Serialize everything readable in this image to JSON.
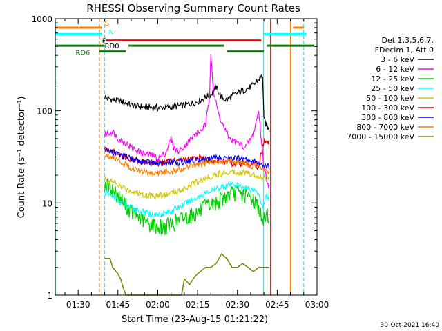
{
  "chart_data": {
    "type": "line",
    "title": "RHESSI Observing Summary Count Rates",
    "xlabel": "Start Time (23-Aug-15 01:21:22)",
    "ylabel": "Count Rate (s⁻¹ detector⁻¹)",
    "y_scale": "log",
    "ylim": [
      1,
      1000
    ],
    "xlim": [
      "01:21:22",
      "03:00:00"
    ],
    "x_tick_labels": [
      "01:30",
      "01:45",
      "02:00",
      "02:15",
      "02:30",
      "02:45",
      "03:00"
    ],
    "y_tick_labels": [
      "1",
      "10",
      "100",
      "1000"
    ],
    "timestamp": "30-Oct-2021 16:40",
    "legend": {
      "position": "right",
      "header": [
        "Det 1,3,5,6,7,",
        "FDecim 1, Att 0"
      ]
    },
    "flag_labels": [
      "S",
      "N",
      "F",
      "RD0",
      "RD6"
    ],
    "flags": [
      {
        "label": "S",
        "color": "#ff7f00",
        "y": 800,
        "segments": [
          [
            "01:21:22",
            "01:39:00"
          ],
          [
            "02:51:00",
            "02:55:00"
          ]
        ]
      },
      {
        "label": "N",
        "color": "#00ffff",
        "y": 680,
        "segments": [
          [
            "01:21:22",
            "01:39:00"
          ],
          [
            "02:40:00",
            "02:56:00"
          ]
        ]
      },
      {
        "label": "F",
        "color": "#ff0000",
        "y": 580,
        "segments": [
          [
            "01:40:30",
            "02:39:00"
          ]
        ]
      },
      {
        "label": "RD0",
        "color": "#008000",
        "y": 510,
        "segments": [
          [
            "01:21:22",
            "01:40:00"
          ],
          [
            "01:49:00",
            "02:25:00"
          ],
          [
            "02:41:00",
            "02:59:00"
          ]
        ]
      },
      {
        "label": "RD6",
        "color": "#008000",
        "y": 440,
        "segments": [
          [
            "01:38:00",
            "01:48:00"
          ],
          [
            "02:26:00",
            "02:40:00"
          ]
        ]
      }
    ],
    "vlines": [
      {
        "t": "01:21:22",
        "color": "#00ffff",
        "style": "solid"
      },
      {
        "t": "01:38:00",
        "color": "#ff7f00",
        "style": "dashed"
      },
      {
        "t": "01:40:00",
        "color": "#00ffff",
        "style": "dashed"
      },
      {
        "t": "02:39:50",
        "color": "#00ffff",
        "style": "solid"
      },
      {
        "t": "02:42:30",
        "color": "#ff0000",
        "style": "solid"
      },
      {
        "t": "02:50:00",
        "color": "#ff7f00",
        "style": "solid"
      },
      {
        "t": "02:55:00",
        "color": "#00ffff",
        "style": "dashed"
      }
    ],
    "series": [
      {
        "name": "3 - 6 keV",
        "color": "#000000",
        "points": [
          [
            "01:40:00",
            140
          ],
          [
            "01:43:00",
            132
          ],
          [
            "01:46:00",
            127
          ],
          [
            "01:50:00",
            115
          ],
          [
            "01:55:00",
            110
          ],
          [
            "02:00:00",
            108
          ],
          [
            "02:05:00",
            110
          ],
          [
            "02:10:00",
            115
          ],
          [
            "02:15:00",
            125
          ],
          [
            "02:18:00",
            140
          ],
          [
            "02:20:00",
            150
          ],
          [
            "02:22:00",
            180
          ],
          [
            "02:24:00",
            140
          ],
          [
            "02:26:00",
            130
          ],
          [
            "02:28:00",
            145
          ],
          [
            "02:30:00",
            155
          ],
          [
            "02:33:00",
            170
          ],
          [
            "02:36:00",
            190
          ],
          [
            "02:38:00",
            220
          ],
          [
            "02:39:30",
            240
          ],
          [
            "02:40:00",
            80
          ],
          [
            "02:41:00",
            70
          ],
          [
            "02:42:00",
            62
          ]
        ]
      },
      {
        "name": "6 - 12 keV",
        "color": "#ff00ff",
        "points": [
          [
            "01:40:00",
            55
          ],
          [
            "01:43:00",
            60
          ],
          [
            "01:45:00",
            50
          ],
          [
            "01:48:00",
            45
          ],
          [
            "01:50:00",
            40
          ],
          [
            "01:53:00",
            36
          ],
          [
            "01:55:00",
            34
          ],
          [
            "01:58:00",
            33
          ],
          [
            "02:00:00",
            30
          ],
          [
            "02:03:00",
            35
          ],
          [
            "02:05:00",
            50
          ],
          [
            "02:06:00",
            40
          ],
          [
            "02:08:00",
            36
          ],
          [
            "02:10:00",
            42
          ],
          [
            "02:12:00",
            48
          ],
          [
            "02:14:00",
            55
          ],
          [
            "02:16:00",
            60
          ],
          [
            "02:18:00",
            70
          ],
          [
            "02:19:30",
            140
          ],
          [
            "02:20:00",
            450
          ],
          [
            "02:21:00",
            160
          ],
          [
            "02:23:00",
            90
          ],
          [
            "02:25:00",
            65
          ],
          [
            "02:27:00",
            50
          ],
          [
            "02:30:00",
            45
          ],
          [
            "02:33:00",
            40
          ],
          [
            "02:36:00",
            55
          ],
          [
            "02:38:00",
            100
          ],
          [
            "02:39:00",
            50
          ],
          [
            "02:40:00",
            25
          ],
          [
            "02:41:00",
            18
          ],
          [
            "02:42:00",
            15
          ]
        ]
      },
      {
        "name": "12 - 25 keV",
        "color": "#00d000",
        "points": [
          [
            "01:40:00",
            16
          ],
          [
            "01:43:00",
            14
          ],
          [
            "01:46:00",
            11
          ],
          [
            "01:50:00",
            8
          ],
          [
            "01:53:00",
            7
          ],
          [
            "01:56:00",
            6
          ],
          [
            "02:00:00",
            5.5
          ],
          [
            "02:03:00",
            5.5
          ],
          [
            "02:06:00",
            6
          ],
          [
            "02:10:00",
            7
          ],
          [
            "02:14:00",
            7.5
          ],
          [
            "02:18:00",
            9
          ],
          [
            "02:22:00",
            10
          ],
          [
            "02:26:00",
            12
          ],
          [
            "02:30:00",
            13
          ],
          [
            "02:33:00",
            12
          ],
          [
            "02:36:00",
            11
          ],
          [
            "02:38:00",
            9
          ],
          [
            "02:39:30",
            6
          ],
          [
            "02:41:00",
            8
          ],
          [
            "02:42:00",
            7
          ]
        ]
      },
      {
        "name": "25 - 50 keV",
        "color": "#00ffff",
        "points": [
          [
            "01:40:00",
            13
          ],
          [
            "01:43:00",
            12
          ],
          [
            "01:46:00",
            10
          ],
          [
            "01:50:00",
            9
          ],
          [
            "01:54:00",
            8
          ],
          [
            "01:58:00",
            7.5
          ],
          [
            "02:00:00",
            7.5
          ],
          [
            "02:04:00",
            8
          ],
          [
            "02:08:00",
            9
          ],
          [
            "02:12:00",
            10.5
          ],
          [
            "02:16:00",
            12
          ],
          [
            "02:20:00",
            13.5
          ],
          [
            "02:24:00",
            15
          ],
          [
            "02:28:00",
            16
          ],
          [
            "02:32:00",
            15
          ],
          [
            "02:36:00",
            14
          ],
          [
            "02:38:00",
            13
          ],
          [
            "02:39:30",
            9
          ],
          [
            "02:41:00",
            12
          ],
          [
            "02:42:00",
            11
          ]
        ]
      },
      {
        "name": "50 - 100 keV",
        "color": "#d4c800",
        "points": [
          [
            "01:40:00",
            18
          ],
          [
            "01:43:00",
            17
          ],
          [
            "01:46:00",
            15
          ],
          [
            "01:50:00",
            13.5
          ],
          [
            "01:54:00",
            12.5
          ],
          [
            "01:58:00",
            12
          ],
          [
            "02:00:00",
            12
          ],
          [
            "02:04:00",
            12.5
          ],
          [
            "02:08:00",
            13.5
          ],
          [
            "02:12:00",
            15.5
          ],
          [
            "02:16:00",
            17.5
          ],
          [
            "02:20:00",
            19.5
          ],
          [
            "02:24:00",
            21
          ],
          [
            "02:28:00",
            22
          ],
          [
            "02:32:00",
            21.5
          ],
          [
            "02:36:00",
            20.5
          ],
          [
            "02:38:00",
            19.5
          ],
          [
            "02:40:00",
            19
          ],
          [
            "02:42:00",
            18
          ]
        ]
      },
      {
        "name": "100 - 300 keV",
        "color": "#e00000",
        "points": [
          [
            "01:40:00",
            38
          ],
          [
            "01:43:00",
            37
          ],
          [
            "01:46:00",
            33
          ],
          [
            "01:50:00",
            30
          ],
          [
            "01:54:00",
            28
          ],
          [
            "01:58:00",
            27
          ],
          [
            "02:00:00",
            27.5
          ],
          [
            "02:04:00",
            28
          ],
          [
            "02:08:00",
            29
          ],
          [
            "02:12:00",
            30
          ],
          [
            "02:16:00",
            31
          ],
          [
            "02:20:00",
            29
          ],
          [
            "02:24:00",
            28
          ],
          [
            "02:28:00",
            27
          ],
          [
            "02:32:00",
            27
          ],
          [
            "02:36:00",
            26
          ],
          [
            "02:38:00",
            25
          ],
          [
            "02:40:00",
            48
          ],
          [
            "02:41:30",
            45
          ],
          [
            "02:42:00",
            44
          ]
        ]
      },
      {
        "name": "300 - 800 keV",
        "color": "#0000ff",
        "points": [
          [
            "01:40:00",
            38
          ],
          [
            "01:43:00",
            36
          ],
          [
            "01:46:00",
            33
          ],
          [
            "01:50:00",
            30
          ],
          [
            "01:54:00",
            28
          ],
          [
            "01:58:00",
            27
          ],
          [
            "02:00:00",
            27
          ],
          [
            "02:04:00",
            27
          ],
          [
            "02:08:00",
            27.5
          ],
          [
            "02:12:00",
            28.5
          ],
          [
            "02:16:00",
            29.5
          ],
          [
            "02:20:00",
            30.5
          ],
          [
            "02:24:00",
            31
          ],
          [
            "02:28:00",
            30.5
          ],
          [
            "02:32:00",
            30
          ],
          [
            "02:36:00",
            28
          ],
          [
            "02:38:00",
            27
          ],
          [
            "02:40:00",
            26
          ],
          [
            "02:42:00",
            25
          ]
        ]
      },
      {
        "name": "800 - 7000 keV",
        "color": "#ff7f00",
        "points": [
          [
            "01:40:00",
            33
          ],
          [
            "01:43:00",
            32
          ],
          [
            "01:46:00",
            28
          ],
          [
            "01:50:00",
            24
          ],
          [
            "01:54:00",
            22
          ],
          [
            "01:58:00",
            21
          ],
          [
            "02:00:00",
            21
          ],
          [
            "02:04:00",
            22
          ],
          [
            "02:08:00",
            23
          ],
          [
            "02:12:00",
            25
          ],
          [
            "02:16:00",
            26.5
          ],
          [
            "02:20:00",
            28
          ],
          [
            "02:24:00",
            29
          ],
          [
            "02:28:00",
            28.5
          ],
          [
            "02:32:00",
            27
          ],
          [
            "02:36:00",
            25
          ],
          [
            "02:38:00",
            24
          ],
          [
            "02:40:00",
            23
          ],
          [
            "02:42:00",
            22
          ]
        ]
      },
      {
        "name": "7000 - 15000 keV",
        "color": "#808000",
        "points": [
          [
            "01:40:00",
            2.5
          ],
          [
            "01:42:00",
            2.5
          ],
          [
            "01:43:00",
            2.0
          ],
          [
            "01:45:00",
            1.7
          ],
          [
            "01:46:00",
            1.5
          ],
          [
            "01:47:00",
            1.2
          ],
          [
            "01:48:00",
            1.0
          ],
          [
            "02:09:00",
            1.0
          ],
          [
            "02:10:00",
            1.5
          ],
          [
            "02:12:00",
            1.3
          ],
          [
            "02:14:00",
            1.6
          ],
          [
            "02:16:00",
            1.8
          ],
          [
            "02:18:00",
            2.0
          ],
          [
            "02:20:00",
            2.0
          ],
          [
            "02:22:00",
            2.2
          ],
          [
            "02:24:00",
            2.8
          ],
          [
            "02:26:00",
            2.5
          ],
          [
            "02:28:00",
            2.0
          ],
          [
            "02:30:00",
            2.0
          ],
          [
            "02:32:00",
            2.2
          ],
          [
            "02:34:00",
            2.0
          ],
          [
            "02:36:00",
            1.8
          ],
          [
            "02:38:00",
            2.0
          ],
          [
            "02:40:00",
            2.0
          ],
          [
            "02:42:00",
            2.0
          ]
        ]
      }
    ]
  }
}
